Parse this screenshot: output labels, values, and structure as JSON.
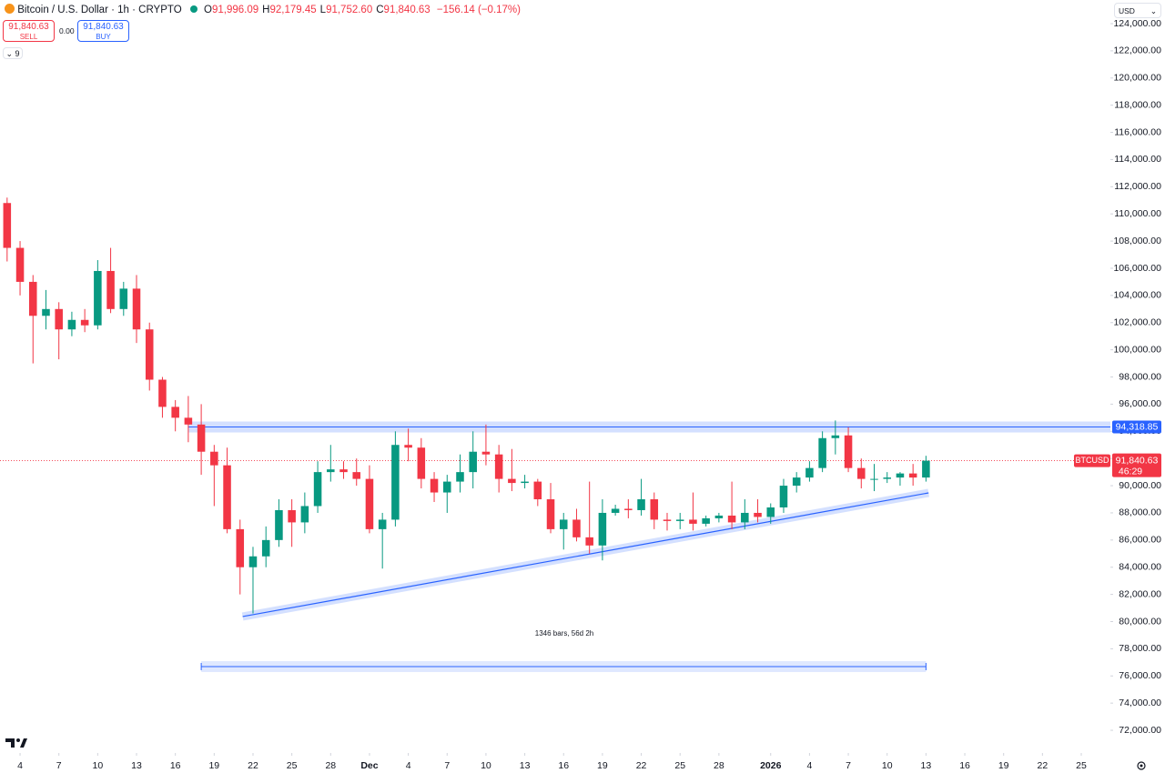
{
  "header": {
    "symbol": "Bitcoin / U.S. Dollar · 1h · CRYPTO",
    "ohlc": [
      {
        "key": "O",
        "value": "91,996.09"
      },
      {
        "key": "H",
        "value": "92,179.45"
      },
      {
        "key": "L",
        "value": "91,752.60"
      },
      {
        "key": "C",
        "value": "91,840.63"
      }
    ],
    "change": "−156.14 (−0.17%)",
    "sell": {
      "price": "91,840.63",
      "label": "SELL"
    },
    "spread": "0.00",
    "buy": {
      "price": "91,840.63",
      "label": "BUY"
    },
    "indicators": "9",
    "currency": "USD"
  },
  "chart_data": {
    "type": "candlestick",
    "xlim": [
      -1.55,
      84.25
    ],
    "ylim": [
      70330,
      125740
    ],
    "xticks": [
      {
        "value": 0,
        "label": "4"
      },
      {
        "value": 3,
        "label": "7"
      },
      {
        "value": 6,
        "label": "10"
      },
      {
        "value": 9,
        "label": "13"
      },
      {
        "value": 12,
        "label": "16"
      },
      {
        "value": 15,
        "label": "19"
      },
      {
        "value": 18,
        "label": "22"
      },
      {
        "value": 21,
        "label": "25"
      },
      {
        "value": 24,
        "label": "28"
      },
      {
        "value": 27,
        "label": "Dec"
      },
      {
        "value": 30,
        "label": "4"
      },
      {
        "value": 33,
        "label": "7"
      },
      {
        "value": 36,
        "label": "10"
      },
      {
        "value": 39,
        "label": "13"
      },
      {
        "value": 42,
        "label": "16"
      },
      {
        "value": 45,
        "label": "19"
      },
      {
        "value": 48,
        "label": "22"
      },
      {
        "value": 51,
        "label": "25"
      },
      {
        "value": 54,
        "label": "28"
      },
      {
        "value": 58,
        "label": "2026"
      },
      {
        "value": 61,
        "label": "4"
      },
      {
        "value": 64,
        "label": "7"
      },
      {
        "value": 67,
        "label": "10"
      },
      {
        "value": 70,
        "label": "13"
      },
      {
        "value": 73,
        "label": "16"
      },
      {
        "value": 76,
        "label": "19"
      },
      {
        "value": 79,
        "label": "22"
      },
      {
        "value": 82,
        "label": "25"
      }
    ],
    "yticks": [
      {
        "value": 72000,
        "label": "72,000.00"
      },
      {
        "value": 74000,
        "label": "74,000.00"
      },
      {
        "value": 76000,
        "label": "76,000.00"
      },
      {
        "value": 78000,
        "label": "78,000.00"
      },
      {
        "value": 80000,
        "label": "80,000.00"
      },
      {
        "value": 82000,
        "label": "82,000.00"
      },
      {
        "value": 84000,
        "label": "84,000.00"
      },
      {
        "value": 86000,
        "label": "86,000.00"
      },
      {
        "value": 88000,
        "label": "88,000.00"
      },
      {
        "value": 90000,
        "label": "90,000.00"
      },
      {
        "value": 92000,
        "label": "92,000.00"
      },
      {
        "value": 94000,
        "label": "94,000.00"
      },
      {
        "value": 96000,
        "label": "96,000.00"
      },
      {
        "value": 98000,
        "label": "98,000.00"
      },
      {
        "value": 100000,
        "label": "100,000.00"
      },
      {
        "value": 102000,
        "label": "102,000.00"
      },
      {
        "value": 104000,
        "label": "104,000.00"
      },
      {
        "value": 106000,
        "label": "106,000.00"
      },
      {
        "value": 108000,
        "label": "108,000.00"
      },
      {
        "value": 110000,
        "label": "110,000.00"
      },
      {
        "value": 112000,
        "label": "112,000.00"
      },
      {
        "value": 114000,
        "label": "114,000.00"
      },
      {
        "value": 116000,
        "label": "116,000.00"
      },
      {
        "value": 118000,
        "label": "118,000.00"
      },
      {
        "value": 120000,
        "label": "120,000.00"
      },
      {
        "value": 122000,
        "label": "122,000.00"
      },
      {
        "value": 124000,
        "label": "124,000.00"
      }
    ],
    "grid": false,
    "up_color": "#089981",
    "down_color": "#f23645",
    "series": {
      "name": "BTCUSD",
      "x": [
        -1,
        0,
        1,
        2,
        3,
        4,
        5,
        6,
        7,
        8,
        9,
        10,
        11,
        12,
        13,
        14,
        15,
        16,
        17,
        18,
        19,
        20,
        21,
        22,
        23,
        24,
        25,
        26,
        27,
        28,
        29,
        30,
        31,
        32,
        33,
        34,
        35,
        36,
        37,
        38,
        39,
        40,
        41,
        42,
        43,
        44,
        45,
        46,
        47,
        48,
        49,
        50,
        51,
        52,
        53,
        54,
        55,
        56,
        57,
        58,
        59,
        60,
        61,
        62,
        63,
        64,
        65,
        66,
        67,
        68,
        69,
        70
      ],
      "open": [
        110800,
        107500,
        105000,
        102500,
        103000,
        101500,
        102200,
        101800,
        105800,
        103000,
        104500,
        101500,
        97800,
        95800,
        95000,
        94500,
        92500,
        91500,
        86800,
        84000,
        84800,
        86000,
        88200,
        87300,
        88500,
        91000,
        91200,
        91000,
        90500,
        86800,
        87500,
        93000,
        92800,
        90500,
        89500,
        90300,
        91000,
        92500,
        92300,
        90500,
        90200,
        90300,
        89000,
        86800,
        87500,
        86200,
        85600,
        88000,
        88300,
        88200,
        89000,
        87500,
        87400,
        87500,
        87200,
        87600,
        87800,
        87300,
        88000,
        87700,
        88400,
        90000,
        90600,
        91300,
        93500,
        93700,
        91300,
        90500,
        90500,
        90600,
        90900,
        90600
      ],
      "high": [
        111200,
        108000,
        105500,
        104400,
        103500,
        102800,
        103000,
        106600,
        107500,
        105000,
        105500,
        102000,
        98000,
        96300,
        96600,
        96000,
        93000,
        92800,
        87500,
        85500,
        87000,
        89000,
        89000,
        89500,
        91800,
        93000,
        91800,
        92000,
        91500,
        88000,
        94000,
        94200,
        93500,
        91000,
        90800,
        92300,
        94000,
        94500,
        93000,
        92700,
        90800,
        90500,
        90200,
        88000,
        88300,
        90300,
        89000,
        88600,
        89000,
        90500,
        89500,
        88000,
        88000,
        89500,
        87800,
        88000,
        90300,
        89000,
        89000,
        88700,
        90500,
        91000,
        91800,
        94000,
        94800,
        94300,
        92000,
        91600,
        91000,
        91000,
        91600,
        92200
      ],
      "low": [
        106500,
        104000,
        99000,
        101500,
        99300,
        101000,
        101300,
        101500,
        102700,
        102500,
        100500,
        97000,
        95000,
        94000,
        93200,
        90800,
        88500,
        86500,
        82000,
        80600,
        84000,
        85500,
        85500,
        86500,
        88000,
        90300,
        90500,
        90000,
        86500,
        83900,
        87000,
        91800,
        89800,
        88800,
        88000,
        89500,
        89800,
        91500,
        89500,
        89600,
        89800,
        88500,
        86500,
        85300,
        85900,
        85000,
        84500,
        87800,
        87600,
        87800,
        86800,
        86700,
        86800,
        86700,
        87000,
        87300,
        86800,
        86800,
        87300,
        87200,
        88000,
        89500,
        90300,
        91000,
        92300,
        91000,
        89800,
        89600,
        90200,
        90000,
        90000,
        90300
      ],
      "close": [
        107500,
        105000,
        102500,
        103000,
        101500,
        102200,
        101800,
        105800,
        103000,
        104500,
        101500,
        97800,
        95800,
        95000,
        94500,
        92500,
        91500,
        86800,
        84000,
        84800,
        86000,
        88200,
        87300,
        88500,
        91000,
        91200,
        91000,
        90500,
        86800,
        87500,
        93000,
        92800,
        90500,
        89500,
        90300,
        91000,
        92500,
        92300,
        90500,
        90200,
        90300,
        89000,
        86800,
        87500,
        86200,
        85600,
        88000,
        88300,
        88200,
        89000,
        87500,
        87400,
        87500,
        87200,
        87600,
        87800,
        87300,
        88000,
        87700,
        88400,
        90000,
        90600,
        91300,
        93500,
        93700,
        91300,
        90500,
        90500,
        90600,
        90900,
        90600,
        91840.63
      ]
    },
    "price_label": {
      "value": 91840.63,
      "label": "91,840.63",
      "countdown": "46:29"
    },
    "horizontal_line": {
      "value": 94318.85,
      "label": "94,318.85",
      "x": 13.0,
      "color": "#2962ff"
    },
    "trend_line": {
      "x": [
        17.2,
        70.2
      ],
      "y": [
        80370,
        89470
      ],
      "color": "#2962ff"
    },
    "date_range": {
      "label": "1346 bars, 56d 2h",
      "x": [
        14.0,
        70.0
      ],
      "y": 76690
    }
  }
}
